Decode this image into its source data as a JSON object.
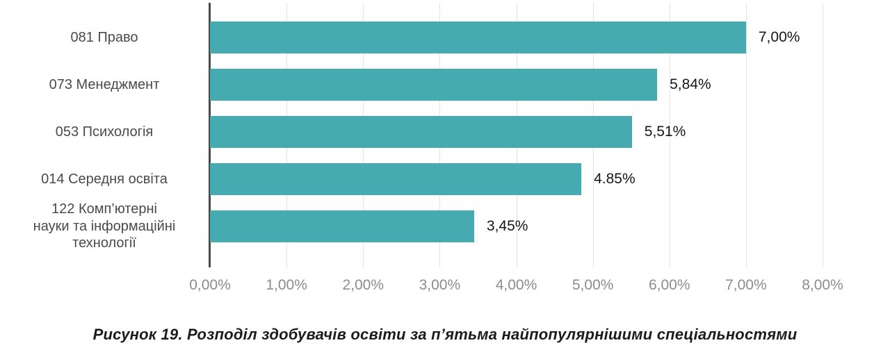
{
  "chart_data": {
    "type": "bar",
    "orientation": "horizontal",
    "categories": [
      "081 Право",
      "073 Менеджмент",
      "053 Психологія",
      "014 Середня освіта",
      "122 Комп’ютерні\nнауки та інформаційні\nтехнології"
    ],
    "values": [
      7.0,
      5.84,
      5.51,
      4.85,
      3.45
    ],
    "value_labels": [
      "7,00%",
      "5,84%",
      "5,51%",
      "4.85%",
      "3,45%"
    ],
    "x_ticks": [
      "0,00%",
      "1,00%",
      "2,00%",
      "3,00%",
      "4,00%",
      "5,00%",
      "6,00%",
      "7,00%",
      "8,00%"
    ],
    "xlim": [
      0,
      8
    ],
    "grid": true,
    "legend": "none",
    "colors": {
      "bar": "#45abb0",
      "axis_line": "#4a4a4a",
      "gridline": "#e3e3e3",
      "tick_label": "#8c8c8c",
      "category_label": "#4a4a4a",
      "value_label": "#161616",
      "caption": "#1c1c1c"
    }
  },
  "caption": "Рисунок 19. Розподіл здобувачів освіти за п’ятьма найпопулярнішими спеціальностями"
}
